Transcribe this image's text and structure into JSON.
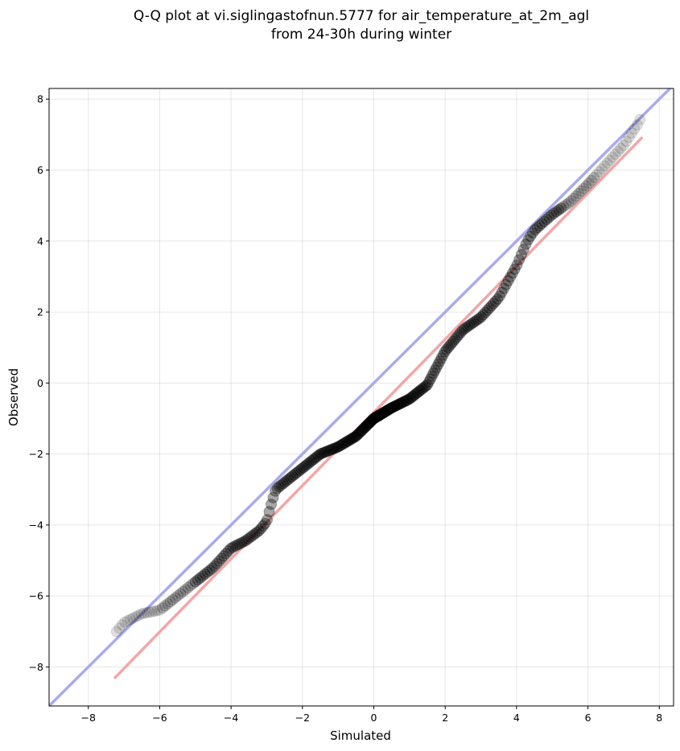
{
  "chart_data": {
    "type": "scatter",
    "title": "Q-Q plot at vi.siglingastofnun.5777 for air_temperature_at_2m_agl",
    "subtitle": "from 24-30h during winter",
    "xlabel": "Simulated",
    "ylabel": "Observed",
    "xlim": [
      -9.1,
      8.4
    ],
    "ylim": [
      -9.1,
      8.3
    ],
    "xticks": [
      -8,
      -6,
      -4,
      -2,
      0,
      2,
      4,
      6,
      8
    ],
    "yticks": [
      -8,
      -6,
      -4,
      -2,
      0,
      2,
      4,
      6,
      8
    ],
    "xtick_labels": [
      "−8",
      "−6",
      "−4",
      "−2",
      "0",
      "2",
      "4",
      "6",
      "8"
    ],
    "ytick_labels": [
      "−8",
      "−6",
      "−4",
      "−2",
      "0",
      "2",
      "4",
      "6",
      "8"
    ],
    "grid": true,
    "legend": "none",
    "reference_line": {
      "name": "1:1",
      "color": "#aaaaee",
      "x": [
        -9.1,
        8.4
      ],
      "y": [
        -9.1,
        8.4
      ]
    },
    "fit_line": {
      "color": "#f4a6a6",
      "x": [
        -7.25,
        7.5
      ],
      "y": [
        -8.3,
        6.9
      ]
    },
    "quantile_knots": [
      [
        -7.25,
        -7.05
      ],
      [
        -7.0,
        -6.75
      ],
      [
        -6.5,
        -6.5
      ],
      [
        -6.0,
        -6.4
      ],
      [
        -5.5,
        -6.0
      ],
      [
        -5.0,
        -5.6
      ],
      [
        -4.5,
        -5.2
      ],
      [
        -4.0,
        -4.65
      ],
      [
        -3.6,
        -4.45
      ],
      [
        -3.2,
        -4.15
      ],
      [
        -3.0,
        -3.9
      ],
      [
        -2.9,
        -3.5
      ],
      [
        -2.75,
        -3.0
      ],
      [
        -2.5,
        -2.8
      ],
      [
        -2.0,
        -2.4
      ],
      [
        -1.5,
        -2.0
      ],
      [
        -1.0,
        -1.8
      ],
      [
        -0.5,
        -1.5
      ],
      [
        0.0,
        -1.0
      ],
      [
        0.5,
        -0.7
      ],
      [
        1.0,
        -0.45
      ],
      [
        1.5,
        -0.05
      ],
      [
        2.0,
        0.9
      ],
      [
        2.5,
        1.5
      ],
      [
        3.0,
        1.85
      ],
      [
        3.5,
        2.4
      ],
      [
        4.0,
        3.3
      ],
      [
        4.3,
        4.0
      ],
      [
        4.5,
        4.3
      ],
      [
        5.0,
        4.75
      ],
      [
        5.5,
        5.1
      ],
      [
        6.0,
        5.6
      ],
      [
        6.5,
        6.15
      ],
      [
        7.0,
        6.7
      ],
      [
        7.4,
        7.3
      ],
      [
        7.5,
        7.5
      ]
    ],
    "n_points": 300,
    "point_color": "#000000"
  }
}
